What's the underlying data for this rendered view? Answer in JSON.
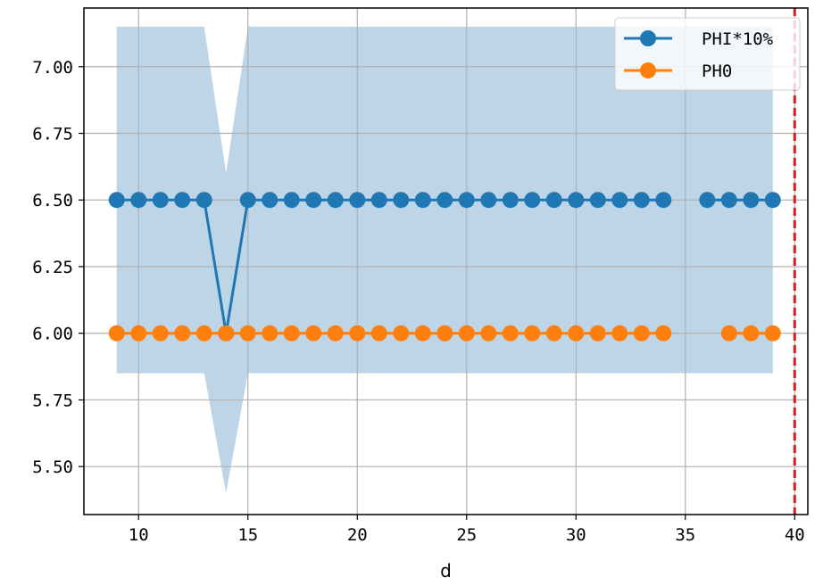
{
  "chart_data": {
    "type": "line",
    "title": "",
    "xlabel": "d",
    "ylabel": "",
    "xlim": [
      7.5,
      40.6
    ],
    "ylim": [
      5.32,
      7.22
    ],
    "xticks": [
      10,
      15,
      20,
      25,
      30,
      35,
      40
    ],
    "yticks": [
      5.5,
      5.75,
      6.0,
      6.25,
      6.5,
      6.75,
      7.0
    ],
    "ytick_labels": [
      "5.50",
      "5.75",
      "6.00",
      "6.25",
      "6.50",
      "6.75",
      "7.00"
    ],
    "grid": true,
    "legend_position": "top-right",
    "band": {
      "color": "#bed5e7",
      "x": [
        9,
        13,
        14,
        15,
        39
      ],
      "upper": [
        7.15,
        7.15,
        6.6,
        7.15,
        7.15
      ],
      "lower": [
        5.85,
        5.85,
        5.4,
        5.85,
        5.85
      ]
    },
    "vline": {
      "x": 40,
      "color": "#e31a1c",
      "style": "dashed"
    },
    "series": [
      {
        "name": "PHI*10%",
        "color": "#1f77b4",
        "x": [
          9,
          10,
          11,
          12,
          13,
          14,
          15,
          16,
          17,
          18,
          19,
          20,
          21,
          22,
          23,
          24,
          25,
          26,
          27,
          28,
          29,
          30,
          31,
          32,
          33,
          34,
          36,
          37,
          38,
          39
        ],
        "y": [
          6.5,
          6.5,
          6.5,
          6.5,
          6.5,
          6.0,
          6.5,
          6.5,
          6.5,
          6.5,
          6.5,
          6.5,
          6.5,
          6.5,
          6.5,
          6.5,
          6.5,
          6.5,
          6.5,
          6.5,
          6.5,
          6.5,
          6.5,
          6.5,
          6.5,
          6.5,
          6.5,
          6.5,
          6.5,
          6.5
        ]
      },
      {
        "name": "PH0",
        "color": "#ff7f0e",
        "x": [
          9,
          10,
          11,
          12,
          13,
          14,
          15,
          16,
          17,
          18,
          19,
          20,
          21,
          22,
          23,
          24,
          25,
          26,
          27,
          28,
          29,
          30,
          31,
          32,
          33,
          34,
          37,
          38,
          39
        ],
        "y": [
          6.0,
          6.0,
          6.0,
          6.0,
          6.0,
          6.0,
          6.0,
          6.0,
          6.0,
          6.0,
          6.0,
          6.0,
          6.0,
          6.0,
          6.0,
          6.0,
          6.0,
          6.0,
          6.0,
          6.0,
          6.0,
          6.0,
          6.0,
          6.0,
          6.0,
          6.0,
          6.0,
          6.0,
          6.0
        ]
      }
    ]
  }
}
